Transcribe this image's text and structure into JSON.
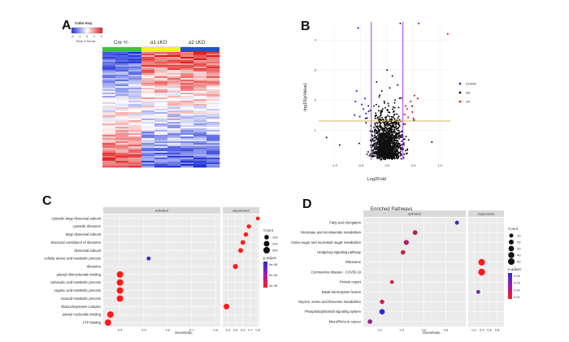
{
  "panels": {
    "A": "A",
    "B": "B",
    "C": "C",
    "D": "D"
  },
  "heatmap": {
    "color_key_title": "Color Key",
    "color_key_ticks": [
      "-2",
      "-1",
      "0",
      "1",
      "2"
    ],
    "color_key_label": "Row Z-Score",
    "groups": [
      "Cre +/-",
      "α1 cKO",
      "α2 cKO"
    ],
    "group_colors": [
      "#3ec23e",
      "#f4f21a",
      "#2052c8"
    ],
    "low_color": "#2b3fd6",
    "high_color": "#e22b2b"
  },
  "chart_data": [
    {
      "type": "heatmap",
      "title": "",
      "columns": [
        "Cre +/-",
        "Cre +/-",
        "Cre +/-",
        "α1 cKO",
        "α1 cKO",
        "α1 cKO",
        "α2 cKO",
        "α2 cKO",
        "α2 cKO"
      ],
      "pattern": "top rows low in Cre +/- and high in cKO groups; bottom rows high in Cre +/- and low in cKO groups",
      "zlim": [
        -2,
        2
      ]
    },
    {
      "type": "scatter",
      "title": "",
      "xlabel": "Log2Fold",
      "ylabel": "-log10(pValue)",
      "xlim": [
        -1.3,
        1.2
      ],
      "ylim": [
        0,
        4.6
      ],
      "xticks": [
        "-1.0",
        "-0.5",
        "0.0",
        "0.5",
        "1.0"
      ],
      "yticks": [
        "1",
        "2",
        "3",
        "4"
      ],
      "vlines": [
        -0.3,
        0.3
      ],
      "hline": 1.3,
      "legend": [
        "DOWN",
        "NA",
        "UP"
      ],
      "legend_colors": [
        "#2233cc",
        "#111111",
        "#dd2222"
      ],
      "down_points": [
        [
          -0.55,
          4.4
        ],
        [
          -0.6,
          1.95
        ],
        [
          -0.45,
          1.7
        ],
        [
          -0.4,
          1.55
        ],
        [
          -0.52,
          1.45
        ],
        [
          -0.35,
          1.62
        ],
        [
          -0.62,
          1.5
        ],
        [
          -0.48,
          1.85
        ],
        [
          -0.38,
          1.4
        ],
        [
          -0.58,
          2.3
        ],
        [
          -0.42,
          2.05
        ]
      ],
      "up_points": [
        [
          1.15,
          4.2
        ],
        [
          0.6,
          4.55
        ],
        [
          0.52,
          2.15
        ],
        [
          0.45,
          1.95
        ],
        [
          0.38,
          1.7
        ],
        [
          0.33,
          1.52
        ],
        [
          0.4,
          1.42
        ],
        [
          0.48,
          1.6
        ],
        [
          0.58,
          2.05
        ],
        [
          0.35,
          1.8
        ],
        [
          0.5,
          1.38
        ]
      ],
      "na_points": [
        [
          -0.2,
          2.6
        ],
        [
          0.1,
          2.8
        ],
        [
          0.0,
          3.0
        ],
        [
          -0.1,
          2.3
        ],
        [
          0.25,
          4.55
        ],
        [
          0.2,
          2.5
        ],
        [
          -1.15,
          0.75
        ],
        [
          -0.9,
          0.5
        ],
        [
          0.85,
          0.6
        ],
        [
          -0.15,
          2.1
        ],
        [
          0.05,
          2.4
        ],
        [
          0.15,
          2.0
        ],
        [
          -0.05,
          1.9
        ],
        [
          0.22,
          1.75
        ],
        [
          -0.25,
          1.8
        ]
      ]
    },
    {
      "type": "scatter",
      "title": "",
      "xlabel": "GeneRatio",
      "facets": [
        "activated",
        "suppressed"
      ],
      "activated_xticks": [
        "0.4",
        "0.5",
        "0.6",
        "0.7",
        "0.8"
      ],
      "activated_xlim": [
        0.33,
        0.82
      ],
      "suppressed_xticks": [
        "0.4",
        "0.5",
        "0.6",
        "0.7",
        "0.8"
      ],
      "suppressed_xlim": [
        0.33,
        0.82
      ],
      "categories": [
        "cytosolic large ribosomal subunit",
        "cytosolic ribosome",
        "large ribosomal subunit",
        "structural constituent of ribosome",
        "ribosomal subunit",
        "cellular amino acid metabolic process",
        "ribosome",
        "adenyl ribonucleotide binding",
        "carboxylic acid metabolic process",
        "organic acid metabolic process",
        "oxoacid metabolic process",
        "ribonucleoprotein complex",
        "adenyl nucleotide binding",
        "ATP binding"
      ],
      "activated": [
        {
          "term": "cellular amino acid metabolic process",
          "ratio": 0.52,
          "count": 60,
          "p": 8e-06
        },
        {
          "term": "adenyl ribonucleotide binding",
          "ratio": 0.4,
          "count": 300,
          "p": 5e-07
        },
        {
          "term": "carboxylic acid metabolic process",
          "ratio": 0.4,
          "count": 300,
          "p": 5e-07
        },
        {
          "term": "organic acid metabolic process",
          "ratio": 0.4,
          "count": 300,
          "p": 5e-07
        },
        {
          "term": "oxoacid metabolic process",
          "ratio": 0.4,
          "count": 300,
          "p": 5e-07
        },
        {
          "term": "adenyl nucleotide binding",
          "ratio": 0.36,
          "count": 300,
          "p": 5e-07
        },
        {
          "term": "ATP binding",
          "ratio": 0.35,
          "count": 280,
          "p": 5e-07
        }
      ],
      "suppressed": [
        {
          "term": "cytosolic large ribosomal subunit",
          "ratio": 0.8,
          "count": 50,
          "p": 5e-07
        },
        {
          "term": "cytosolic ribosome",
          "ratio": 0.68,
          "count": 80,
          "p": 5e-07
        },
        {
          "term": "large ribosomal subunit",
          "ratio": 0.64,
          "count": 90,
          "p": 5e-07
        },
        {
          "term": "structural constituent of ribosome",
          "ratio": 0.6,
          "count": 110,
          "p": 5e-07
        },
        {
          "term": "ribosomal subunit",
          "ratio": 0.57,
          "count": 120,
          "p": 5e-07
        },
        {
          "term": "ribosome",
          "ratio": 0.5,
          "count": 140,
          "p": 5e-07
        },
        {
          "term": "ribonucleoprotein complex",
          "ratio": 0.38,
          "count": 200,
          "p": 5e-07
        }
      ],
      "legend_count_title": "Count",
      "legend_counts": [
        "100",
        "200",
        "300"
      ],
      "legend_p_title": "p.adjust",
      "legend_p_ticks": [
        "9e-06",
        "6e-06",
        "3e-06"
      ]
    },
    {
      "type": "scatter",
      "title": "Enriched Pathways",
      "xlabel": "GeneRatio",
      "facets": [
        "activated",
        "suppressed"
      ],
      "activated_xticks": [
        "0.2",
        "0.4",
        "0.6",
        "0.8"
      ],
      "activated_xlim": [
        0.05,
        0.98
      ],
      "suppressed_xticks": [
        "0.2",
        "0.4",
        "0.6",
        "0.8"
      ],
      "suppressed_xlim": [
        0.05,
        0.98
      ],
      "categories": [
        "Fatty acid elongation",
        "Nicotinate and nicotinamide metabolism",
        "Amino sugar and nucleotide sugar metabolism",
        "Hedgehog signaling pathway",
        "Ribosome",
        "Coronavirus disease - COVID-19",
        "Protein export",
        "Basal transcription factors",
        "Glycine, serine and threonine metabolism",
        "Phosphatidylinositol signaling system",
        "MicroRNAs in cancer"
      ],
      "activated": [
        {
          "term": "Fatty acid elongation",
          "ratio": 0.9,
          "count": 10,
          "p": 0.04
        },
        {
          "term": "Nicotinate and nicotinamide metabolism",
          "ratio": 0.52,
          "count": 18,
          "p": 0.02
        },
        {
          "term": "Amino sugar and nucleotide sugar metabolism",
          "ratio": 0.44,
          "count": 22,
          "p": 0.02
        },
        {
          "term": "Hedgehog signaling pathway",
          "ratio": 0.41,
          "count": 15,
          "p": 0.015
        },
        {
          "term": "Protein export",
          "ratio": 0.31,
          "count": 8,
          "p": 0.01
        },
        {
          "term": "Glycine, serine and threonine metabolism",
          "ratio": 0.22,
          "count": 14,
          "p": 0.015
        },
        {
          "term": "Phosphatidylinositol signaling system",
          "ratio": 0.22,
          "count": 28,
          "p": 0.045
        },
        {
          "term": "MicroRNAs in cancer",
          "ratio": 0.11,
          "count": 16,
          "p": 0.025
        }
      ],
      "suppressed": [
        {
          "term": "Ribosome",
          "ratio": 0.4,
          "count": 50,
          "p": 0.005
        },
        {
          "term": "Coronavirus disease - COVID-19",
          "ratio": 0.4,
          "count": 55,
          "p": 0.005
        },
        {
          "term": "Basal transcription factors",
          "ratio": 0.31,
          "count": 8,
          "p": 0.035
        }
      ],
      "legend_count_title": "Count",
      "legend_counts": [
        "10",
        "20",
        "30",
        "40",
        "50"
      ],
      "legend_p_title": "p.adjust",
      "legend_p_ticks": [
        "0.04",
        "0.03",
        "0.02",
        "0.01"
      ]
    }
  ]
}
